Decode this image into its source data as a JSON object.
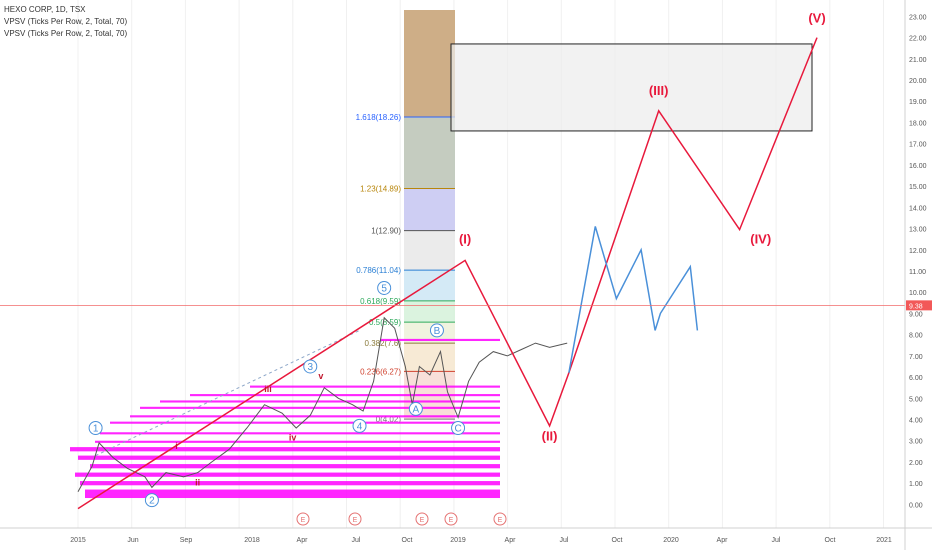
{
  "header": {
    "symbol_line": "HEXO CORP, 1D, TSX",
    "indicator_1": "VPSV (Ticks Per Row, 2, Total, 70)",
    "indicator_2": "VPSV (Ticks Per Row, 2, Total, 70)"
  },
  "colors": {
    "wave_red": "#e8193c",
    "wave_blue": "#4a90d9",
    "volume_magenta": "#ff00ff",
    "current_price_line": "#f26b6b",
    "fib_dashed": "#8da7c9"
  },
  "chart_data": {
    "type": "line",
    "ylim": [
      -0.5,
      23.3
    ],
    "ylabel": "",
    "xlabel": "",
    "y_ticks": [
      "0.00",
      "1.00",
      "2.00",
      "3.00",
      "4.00",
      "5.00",
      "6.00",
      "7.00",
      "8.00",
      "9.00",
      "10.00",
      "11.00",
      "12.00",
      "13.00",
      "14.00",
      "15.00",
      "16.00",
      "17.00",
      "18.00",
      "19.00",
      "20.00",
      "21.00",
      "22.00",
      "23.00"
    ],
    "x_ticks": [
      "2015",
      "Jun",
      "Sep",
      "2018",
      "Apr",
      "Jul",
      "Oct",
      "2019",
      "Apr",
      "Jul",
      "Oct",
      "2020",
      "Apr",
      "Jul",
      "Oct",
      "2021"
    ],
    "current_price": {
      "label": "9.38",
      "value": 9.38
    },
    "fib_levels": [
      {
        "label": "1.618(18.26)",
        "value": 18.26,
        "color": "#2962ff"
      },
      {
        "label": "1.23(14.89)",
        "value": 14.89,
        "color": "#b8860b"
      },
      {
        "label": "1(12.90)",
        "value": 12.9,
        "color": "#555555"
      },
      {
        "label": "0.786(11.04)",
        "value": 11.04,
        "color": "#2a7fd4"
      },
      {
        "label": "0.618(9.59)",
        "value": 9.59,
        "color": "#2eaa5c"
      },
      {
        "label": "0.5(8.59)",
        "value": 8.59,
        "color": "#2eaa5c"
      },
      {
        "label": "0.382(7.6)",
        "value": 7.6,
        "color": "#8a7a3a"
      },
      {
        "label": "0.236(6.27)",
        "value": 6.27,
        "color": "#d0402c"
      },
      {
        "label": "0(4.02)",
        "value": 4.02,
        "color": "#777777"
      }
    ],
    "fib_bands": [
      {
        "from": 18.26,
        "to": 23.3,
        "color": "#c9a57a"
      },
      {
        "from": 14.89,
        "to": 18.26,
        "color": "#bfc6b9"
      },
      {
        "from": 12.9,
        "to": 14.89,
        "color": "#c9c9f2"
      },
      {
        "from": 11.04,
        "to": 12.9,
        "color": "#e9e9e9"
      },
      {
        "from": 9.59,
        "to": 11.04,
        "color": "#cfe8f5"
      },
      {
        "from": 8.59,
        "to": 9.59,
        "color": "#d7f2dc"
      },
      {
        "from": 7.6,
        "to": 8.59,
        "color": "#eef2dc"
      },
      {
        "from": 6.27,
        "to": 7.6,
        "color": "#f6e8d0"
      },
      {
        "from": 4.02,
        "to": 6.27,
        "color": "#f7dcd5"
      }
    ],
    "target_box": {
      "y_from": 17.6,
      "y_to": 21.7
    },
    "series": [
      {
        "color": "#e8193c",
        "points": [
          {
            "x": 0.0,
            "y": -0.2
          },
          {
            "x": 11.0,
            "y": 11.5
          },
          {
            "x": 13.4,
            "y": 3.7
          },
          {
            "x": 13.95,
            "y": 6.2
          },
          {
            "x": 16.5,
            "y": 18.55
          },
          {
            "x": 18.8,
            "y": 12.95
          },
          {
            "x": 21.0,
            "y": 22.0
          }
        ],
        "labels": [
          {
            "text": "(I)",
            "x": 11.0,
            "y": 12.3
          },
          {
            "text": "(II)",
            "x": 13.4,
            "y": 3.0
          },
          {
            "text": "(III)",
            "x": 16.5,
            "y": 19.3
          },
          {
            "text": "(IV)",
            "x": 19.4,
            "y": 12.3
          },
          {
            "text": "(V)",
            "x": 21.0,
            "y": 22.7
          }
        ]
      },
      {
        "color": "#4a90d9",
        "points": [
          {
            "x": 13.95,
            "y": 6.2
          },
          {
            "x": 14.7,
            "y": 13.1
          },
          {
            "x": 15.3,
            "y": 9.7
          },
          {
            "x": 16.0,
            "y": 12.0
          },
          {
            "x": 16.4,
            "y": 8.2
          },
          {
            "x": 16.55,
            "y": 9.0
          },
          {
            "x": 17.4,
            "y": 11.2
          },
          {
            "x": 17.6,
            "y": 8.2
          }
        ],
        "labels": []
      }
    ],
    "x_domain": [
      0,
      23.5
    ]
  },
  "wave_labels_primary": [
    {
      "text": "1",
      "x": 0.5,
      "y": 3.6
    },
    {
      "text": "2",
      "x": 2.1,
      "y": 0.2
    },
    {
      "text": "3",
      "x": 6.6,
      "y": 6.5
    },
    {
      "text": "4",
      "x": 8.0,
      "y": 3.7
    },
    {
      "text": "5",
      "x": 8.7,
      "y": 10.2
    },
    {
      "text": "B",
      "x": 10.2,
      "y": 8.2
    },
    {
      "text": "C",
      "x": 10.8,
      "y": 3.6
    },
    {
      "text": "A",
      "x": 9.6,
      "y": 4.5
    }
  ],
  "wave_labels_minor": [
    {
      "text": "i",
      "x": 2.8,
      "y": 2.6
    },
    {
      "text": "ii",
      "x": 3.4,
      "y": 0.9
    },
    {
      "text": "iii",
      "x": 5.4,
      "y": 5.3
    },
    {
      "text": "iv",
      "x": 6.1,
      "y": 3.0
    },
    {
      "text": "v",
      "x": 6.9,
      "y": 5.9
    }
  ],
  "earnings_markers": [
    "E",
    "E",
    "E",
    "E",
    "E"
  ]
}
